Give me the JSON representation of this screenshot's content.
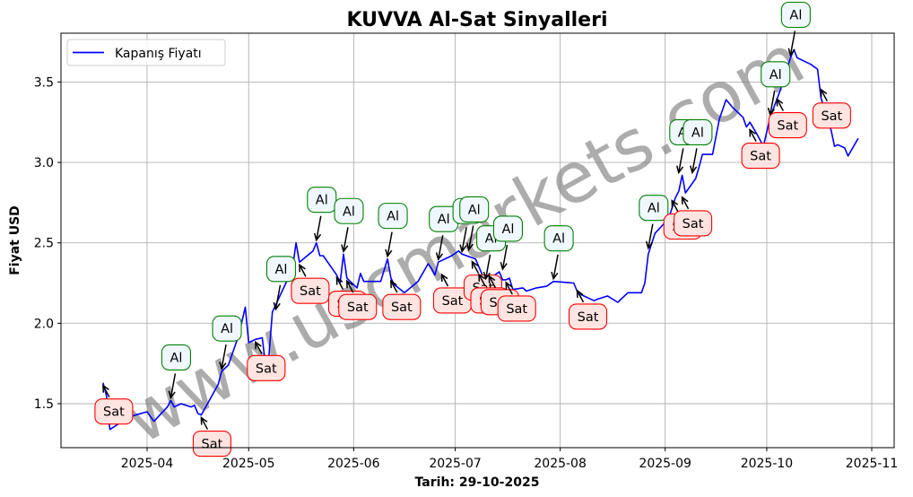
{
  "chart_data": {
    "type": "line",
    "title": "KUVVA Al-Sat Sinyalleri",
    "xlabel": "Tarih: 29-10-2025",
    "ylabel": "Fiyat USD",
    "ylim": [
      1.22,
      3.81
    ],
    "yticks": [
      1.5,
      2.0,
      2.5,
      3.0,
      3.5
    ],
    "ytick_labels": [
      "1.5",
      "2.0",
      "2.5",
      "3.0",
      "3.5"
    ],
    "xticks": [
      "2025-04",
      "2025-05",
      "2025-06",
      "2025-07",
      "2025-08",
      "2025-09",
      "2025-10",
      "2025-11"
    ],
    "grid": true,
    "legend": {
      "position": "upper left",
      "entries": [
        {
          "label": "Kapanış Fiyatı",
          "color": "#0000ff"
        }
      ]
    },
    "watermark": "www.uscmarkets.com",
    "series": [
      {
        "name": "Kapanış Fiyatı",
        "color": "#0000ff",
        "points": [
          [
            "2025-03-19",
            1.63
          ],
          [
            "2025-03-20",
            1.55
          ],
          [
            "2025-03-21",
            1.34
          ],
          [
            "2025-03-24",
            1.38
          ],
          [
            "2025-03-25",
            1.41
          ],
          [
            "2025-03-27",
            1.42
          ],
          [
            "2025-04-01",
            1.45
          ],
          [
            "2025-04-03",
            1.39
          ],
          [
            "2025-04-07",
            1.48
          ],
          [
            "2025-04-08",
            1.52
          ],
          [
            "2025-04-09",
            1.48
          ],
          [
            "2025-04-11",
            1.5
          ],
          [
            "2025-04-14",
            1.48
          ],
          [
            "2025-04-15",
            1.49
          ],
          [
            "2025-04-16",
            1.44
          ],
          [
            "2025-04-17",
            1.43
          ],
          [
            "2025-04-22",
            1.62
          ],
          [
            "2025-04-23",
            1.7
          ],
          [
            "2025-04-25",
            1.74
          ],
          [
            "2025-04-28",
            1.92
          ],
          [
            "2025-04-30",
            2.1
          ],
          [
            "2025-05-01",
            1.88
          ],
          [
            "2025-05-03",
            1.9
          ],
          [
            "2025-05-05",
            1.91
          ],
          [
            "2025-05-06",
            1.74
          ],
          [
            "2025-05-07",
            1.8
          ],
          [
            "2025-05-08",
            2.07
          ],
          [
            "2025-05-12",
            2.25
          ],
          [
            "2025-05-14",
            2.35
          ],
          [
            "2025-05-15",
            2.5
          ],
          [
            "2025-05-16",
            2.38
          ],
          [
            "2025-05-20",
            2.45
          ],
          [
            "2025-05-21",
            2.5
          ],
          [
            "2025-05-22",
            2.42
          ],
          [
            "2025-05-23",
            2.42
          ],
          [
            "2025-05-26",
            2.33
          ],
          [
            "2025-05-27",
            2.3
          ],
          [
            "2025-05-28",
            2.25
          ],
          [
            "2025-05-29",
            2.43
          ],
          [
            "2025-05-30",
            2.28
          ],
          [
            "2025-06-02",
            2.22
          ],
          [
            "2025-06-03",
            2.31
          ],
          [
            "2025-06-04",
            2.26
          ],
          [
            "2025-06-09",
            2.26
          ],
          [
            "2025-06-11",
            2.4
          ],
          [
            "2025-06-12",
            2.28
          ],
          [
            "2025-06-13",
            2.24
          ],
          [
            "2025-06-16",
            2.19
          ],
          [
            "2025-06-20",
            2.26
          ],
          [
            "2025-06-23",
            2.37
          ],
          [
            "2025-06-24",
            2.34
          ],
          [
            "2025-06-25",
            2.3
          ],
          [
            "2025-06-26",
            2.38
          ],
          [
            "2025-06-30",
            2.42
          ],
          [
            "2025-07-02",
            2.45
          ],
          [
            "2025-07-03",
            2.43
          ],
          [
            "2025-07-07",
            2.4
          ],
          [
            "2025-07-09",
            2.3
          ],
          [
            "2025-07-10",
            2.26
          ],
          [
            "2025-07-14",
            2.32
          ],
          [
            "2025-07-15",
            2.27
          ],
          [
            "2025-07-16",
            2.27
          ],
          [
            "2025-07-17",
            2.28
          ],
          [
            "2025-07-18",
            2.21
          ],
          [
            "2025-07-21",
            2.22
          ],
          [
            "2025-07-22",
            2.2
          ],
          [
            "2025-07-25",
            2.22
          ],
          [
            "2025-07-28",
            2.23
          ],
          [
            "2025-07-30",
            2.26
          ],
          [
            "2025-08-05",
            2.25
          ],
          [
            "2025-08-06",
            2.2
          ],
          [
            "2025-08-07",
            2.18
          ],
          [
            "2025-08-11",
            2.14
          ],
          [
            "2025-08-12",
            2.15
          ],
          [
            "2025-08-15",
            2.17
          ],
          [
            "2025-08-18",
            2.13
          ],
          [
            "2025-08-21",
            2.19
          ],
          [
            "2025-08-25",
            2.19
          ],
          [
            "2025-08-26",
            2.25
          ],
          [
            "2025-08-27",
            2.43
          ],
          [
            "2025-08-29",
            2.56
          ],
          [
            "2025-09-02",
            2.65
          ],
          [
            "2025-09-04",
            2.78
          ],
          [
            "2025-09-05",
            2.82
          ],
          [
            "2025-09-06",
            2.92
          ],
          [
            "2025-09-07",
            2.81
          ],
          [
            "2025-09-10",
            2.9
          ],
          [
            "2025-09-11",
            2.97
          ],
          [
            "2025-09-12",
            3.05
          ],
          [
            "2025-09-15",
            3.05
          ],
          [
            "2025-09-17",
            3.27
          ],
          [
            "2025-09-19",
            3.39
          ],
          [
            "2025-09-21",
            3.34
          ],
          [
            "2025-09-24",
            3.28
          ],
          [
            "2025-09-25",
            3.22
          ],
          [
            "2025-09-26",
            3.25
          ],
          [
            "2025-09-28",
            3.18
          ],
          [
            "2025-09-30",
            3.1
          ],
          [
            "2025-10-02",
            3.28
          ],
          [
            "2025-10-05",
            3.45
          ],
          [
            "2025-10-08",
            3.65
          ],
          [
            "2025-10-09",
            3.7
          ],
          [
            "2025-10-10",
            3.65
          ],
          [
            "2025-10-14",
            3.61
          ],
          [
            "2025-10-16",
            3.58
          ],
          [
            "2025-10-17",
            3.4
          ],
          [
            "2025-10-20",
            3.2
          ],
          [
            "2025-10-21",
            3.1
          ],
          [
            "2025-10-22",
            3.11
          ],
          [
            "2025-10-24",
            3.09
          ],
          [
            "2025-10-25",
            3.04
          ],
          [
            "2025-10-28",
            3.15
          ]
        ]
      }
    ],
    "annotations": [
      {
        "type": "Sat",
        "date": "2025-03-19",
        "price": 1.63
      },
      {
        "type": "Al",
        "date": "2025-04-08",
        "price": 1.52
      },
      {
        "type": "Sat",
        "date": "2025-04-17",
        "price": 1.43
      },
      {
        "type": "Al",
        "date": "2025-04-23",
        "price": 1.7
      },
      {
        "type": "Sat",
        "date": "2025-05-03",
        "price": 1.9
      },
      {
        "type": "Al",
        "date": "2025-05-09",
        "price": 2.07
      },
      {
        "type": "Sat",
        "date": "2025-05-16",
        "price": 2.38
      },
      {
        "type": "Al",
        "date": "2025-05-21",
        "price": 2.5
      },
      {
        "type": "Sat",
        "date": "2025-05-27",
        "price": 2.3
      },
      {
        "type": "Al",
        "date": "2025-05-29",
        "price": 2.43
      },
      {
        "type": "Sat",
        "date": "2025-05-30",
        "price": 2.28
      },
      {
        "type": "Al",
        "date": "2025-06-11",
        "price": 2.4
      },
      {
        "type": "Sat",
        "date": "2025-06-12",
        "price": 2.28
      },
      {
        "type": "Al",
        "date": "2025-06-26",
        "price": 2.38
      },
      {
        "type": "Sat",
        "date": "2025-06-27",
        "price": 2.32
      },
      {
        "type": "Al",
        "date": "2025-07-03",
        "price": 2.43
      },
      {
        "type": "Al",
        "date": "2025-07-05",
        "price": 2.44
      },
      {
        "type": "Sat",
        "date": "2025-07-06",
        "price": 2.4
      },
      {
        "type": "Sat",
        "date": "2025-07-08",
        "price": 2.32
      },
      {
        "type": "Al",
        "date": "2025-07-10",
        "price": 2.26
      },
      {
        "type": "Sat",
        "date": "2025-07-11",
        "price": 2.31
      },
      {
        "type": "Al",
        "date": "2025-07-15",
        "price": 2.32
      },
      {
        "type": "Sat",
        "date": "2025-07-16",
        "price": 2.27
      },
      {
        "type": "Al",
        "date": "2025-07-30",
        "price": 2.26
      },
      {
        "type": "Sat",
        "date": "2025-08-06",
        "price": 2.22
      },
      {
        "type": "Al",
        "date": "2025-08-27",
        "price": 2.45
      },
      {
        "type": "Sat",
        "date": "2025-09-03",
        "price": 2.78
      },
      {
        "type": "Al",
        "date": "2025-09-05",
        "price": 2.92
      },
      {
        "type": "Sat",
        "date": "2025-09-06",
        "price": 2.8
      },
      {
        "type": "Al",
        "date": "2025-09-09",
        "price": 2.92
      },
      {
        "type": "Sat",
        "date": "2025-09-26",
        "price": 3.22
      },
      {
        "type": "Al",
        "date": "2025-10-02",
        "price": 3.28
      },
      {
        "type": "Sat",
        "date": "2025-10-04",
        "price": 3.41
      },
      {
        "type": "Al",
        "date": "2025-10-08",
        "price": 3.65
      },
      {
        "type": "Sat",
        "date": "2025-10-17",
        "price": 3.47
      }
    ]
  },
  "labels": {
    "buy": "Al",
    "sell": "Sat"
  },
  "colors": {
    "line": "#0000ff",
    "buy_border": "#008000",
    "buy_fill": "#f0f8ff",
    "sell_border": "#ff0000",
    "sell_fill": "#ffe4e1",
    "grid": "#b0b0b0",
    "watermark": "#808080"
  }
}
